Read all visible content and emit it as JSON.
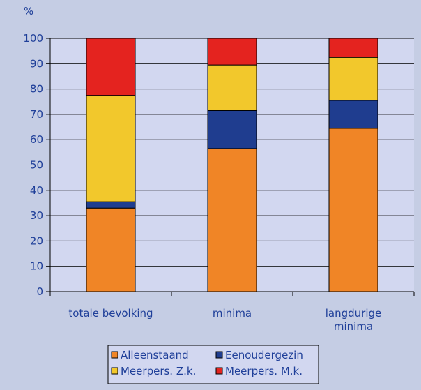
{
  "chart_data": {
    "type": "bar",
    "stacked": true,
    "title": "",
    "ylabel": "%",
    "xlabel": "",
    "ylim": [
      0,
      100
    ],
    "yticks": [
      0,
      10,
      20,
      30,
      40,
      50,
      60,
      70,
      80,
      90,
      100
    ],
    "categories": [
      [
        "totale bevolking"
      ],
      [
        "minima"
      ],
      [
        "langdurige",
        "minima"
      ]
    ],
    "series": [
      {
        "name": "Alleenstaand",
        "color": "#f08526",
        "values": [
          33,
          56.5,
          64.5
        ]
      },
      {
        "name": "Eenoudergezin",
        "color": "#1f3d8f",
        "values": [
          2.5,
          15,
          11
        ]
      },
      {
        "name": "Meerpers. Z.k.",
        "color": "#f2c82c",
        "values": [
          42,
          18,
          17
        ]
      },
      {
        "name": "Meerpers. M.k.",
        "color": "#e4231f",
        "values": [
          22.5,
          10.5,
          7.5
        ]
      }
    ],
    "grid": true,
    "legend": "bottom",
    "plot_background": "#d2d7f0",
    "page_background": "#c5cde4"
  }
}
